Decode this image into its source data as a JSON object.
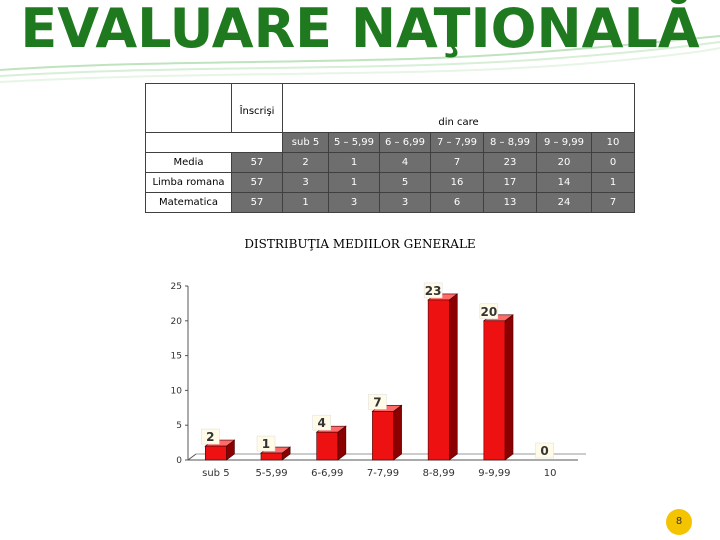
{
  "slide": {
    "title": "EVALUARE NAŢIONALĂ",
    "page_number": "8",
    "colors": {
      "title": "#1f7a1f",
      "bar": "#ee1111",
      "header_cells": "#6e6e6e",
      "badge": "#f5c400"
    }
  },
  "table": {
    "header_top": {
      "enrolled": "Înscrişi",
      "of_which": "din care"
    },
    "bands": [
      "sub 5",
      "5 – 5,99",
      "6 – 6,99",
      "7 – 7,99",
      "8 – 8,99",
      "9 – 9,99",
      "10"
    ],
    "rows": [
      {
        "label": "Media",
        "enrolled": "57",
        "values": [
          "2",
          "1",
          "4",
          "7",
          "23",
          "20",
          "0"
        ]
      },
      {
        "label": "Limba romana",
        "enrolled": "57",
        "values": [
          "3",
          "1",
          "5",
          "16",
          "17",
          "14",
          "1"
        ]
      },
      {
        "label": "Matematica",
        "enrolled": "57",
        "values": [
          "1",
          "3",
          "3",
          "6",
          "13",
          "24",
          "7"
        ]
      }
    ]
  },
  "chart_data": {
    "type": "bar",
    "title": "DISTRIBUŢIA MEDIILOR GENERALE",
    "categories": [
      "sub 5",
      "5-5,99",
      "6-6,99",
      "7-7,99",
      "8-8,99",
      "9-9,99",
      "10"
    ],
    "values": [
      2,
      1,
      4,
      7,
      23,
      20,
      0
    ],
    "ylim": [
      0,
      25
    ],
    "yticks": [
      "0",
      "5",
      "10",
      "15",
      "20",
      "25"
    ],
    "grid": false,
    "style": "3d",
    "data_labels": true
  }
}
